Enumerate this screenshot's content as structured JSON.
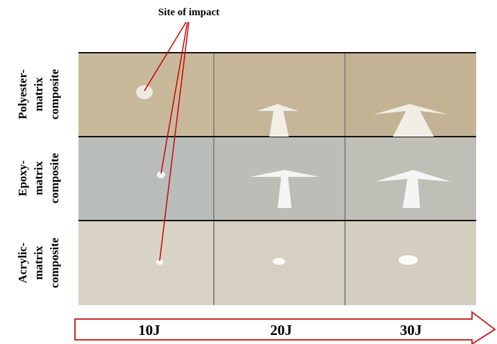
{
  "annotation": "Site of impact",
  "rows": [
    {
      "lines": [
        "Polyester-",
        "matrix",
        "composite"
      ]
    },
    {
      "lines": [
        "Epoxy-",
        "matrix",
        "composite"
      ]
    },
    {
      "lines": [
        "Acrylic-",
        "matrix",
        "composite"
      ]
    }
  ],
  "columns": [
    "10J",
    "20J",
    "30J"
  ]
}
